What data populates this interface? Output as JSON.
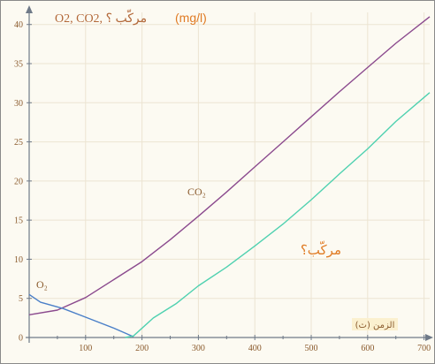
{
  "chart_data": {
    "type": "line",
    "title": "O2, CO2, مركّب ؟",
    "unit": "(mg/l)",
    "xlabel": "الزمن (ث)",
    "xlim": [
      0,
      710
    ],
    "ylim": [
      0,
      42
    ],
    "x_ticks": [
      100,
      200,
      300,
      400,
      500,
      600,
      700
    ],
    "y_ticks": [
      0,
      5,
      10,
      15,
      20,
      25,
      30,
      35,
      40
    ],
    "series": [
      {
        "name": "CO₂",
        "color": "#8b4a8e",
        "points": [
          [
            0,
            2.9
          ],
          [
            50,
            3.5
          ],
          [
            100,
            5.1
          ],
          [
            150,
            7.4
          ],
          [
            200,
            9.7
          ],
          [
            250,
            12.5
          ],
          [
            300,
            15.5
          ],
          [
            350,
            18.6
          ],
          [
            400,
            21.8
          ],
          [
            450,
            25.0
          ],
          [
            500,
            28.2
          ],
          [
            550,
            31.4
          ],
          [
            600,
            34.5
          ],
          [
            650,
            37.6
          ],
          [
            710,
            41.0
          ]
        ]
      },
      {
        "name": "O₂",
        "color": "#4a7fc8",
        "points": [
          [
            0,
            5.5
          ],
          [
            20,
            4.5
          ],
          [
            60,
            3.7
          ],
          [
            100,
            2.6
          ],
          [
            150,
            1.2
          ],
          [
            185,
            0.1
          ]
        ]
      },
      {
        "name": "مركّب؟",
        "color": "#4fd1b0",
        "points": [
          [
            170,
            0
          ],
          [
            185,
            0.2
          ],
          [
            220,
            2.5
          ],
          [
            260,
            4.3
          ],
          [
            300,
            6.6
          ],
          [
            350,
            9.0
          ],
          [
            400,
            11.7
          ],
          [
            450,
            14.5
          ],
          [
            500,
            17.6
          ],
          [
            550,
            20.9
          ],
          [
            600,
            24.1
          ],
          [
            650,
            27.6
          ],
          [
            710,
            31.3
          ]
        ]
      }
    ]
  }
}
